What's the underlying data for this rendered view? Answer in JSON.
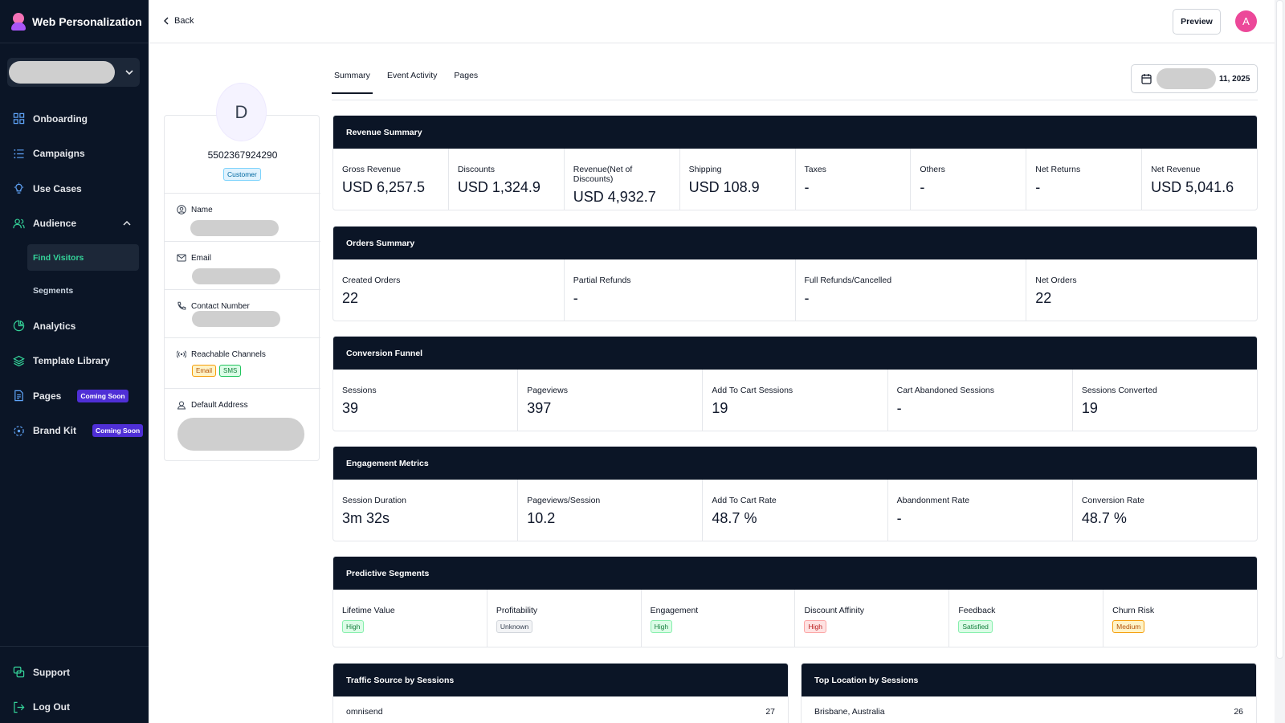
{
  "app": {
    "title": "Web Personalization"
  },
  "sidebar": {
    "nav": [
      {
        "label": "Onboarding",
        "icon": "grid-icon"
      },
      {
        "label": "Campaigns",
        "icon": "list-icon"
      },
      {
        "label": "Use Cases",
        "icon": "lightbulb-icon"
      },
      {
        "label": "Audience",
        "icon": "users-icon"
      }
    ],
    "sub": [
      {
        "label": "Find Visitors"
      },
      {
        "label": "Segments"
      }
    ],
    "nav2": [
      {
        "label": "Analytics",
        "icon": "pie-chart-icon"
      },
      {
        "label": "Template Library",
        "icon": "layers-icon"
      },
      {
        "label": "Pages",
        "icon": "page-icon",
        "badge": "Coming Soon"
      },
      {
        "label": "Brand Kit",
        "icon": "palette-icon",
        "badge": "Coming Soon"
      }
    ],
    "bottom": [
      {
        "label": "Support",
        "icon": "support-icon"
      },
      {
        "label": "Log Out",
        "icon": "logout-icon"
      }
    ]
  },
  "topbar": {
    "back": "Back",
    "preview": "Preview",
    "avatar": "A"
  },
  "profile": {
    "initial": "D",
    "id": "5502367924290",
    "tag": "Customer",
    "fields": {
      "name": "Name",
      "email": "Email",
      "contact": "Contact Number",
      "channels": "Reachable Channels",
      "address": "Default Address"
    },
    "channels": [
      "Email",
      "SMS"
    ]
  },
  "tabs": [
    "Summary",
    "Event Activity",
    "Pages"
  ],
  "date_range": {
    "suffix": "11, 2025"
  },
  "revenue": {
    "title": "Revenue Summary",
    "metrics": [
      {
        "label": "Gross Revenue",
        "value": "USD 6,257.5"
      },
      {
        "label": "Discounts",
        "value": "USD 1,324.9"
      },
      {
        "label": "Revenue(Net of Discounts)",
        "value": "USD 4,932.7"
      },
      {
        "label": "Shipping",
        "value": "USD 108.9"
      },
      {
        "label": "Taxes",
        "value": "-"
      },
      {
        "label": "Others",
        "value": "-"
      },
      {
        "label": "Net Returns",
        "value": "-"
      },
      {
        "label": "Net Revenue",
        "value": "USD 5,041.6"
      }
    ]
  },
  "orders": {
    "title": "Orders Summary",
    "metrics": [
      {
        "label": "Created Orders",
        "value": "22"
      },
      {
        "label": "Partial Refunds",
        "value": "-"
      },
      {
        "label": "Full Refunds/Cancelled",
        "value": "-"
      },
      {
        "label": "Net Orders",
        "value": "22"
      }
    ]
  },
  "funnel": {
    "title": "Conversion Funnel",
    "metrics": [
      {
        "label": "Sessions",
        "value": "39"
      },
      {
        "label": "Pageviews",
        "value": "397"
      },
      {
        "label": "Add To Cart Sessions",
        "value": "19"
      },
      {
        "label": "Cart Abandoned Sessions",
        "value": "-"
      },
      {
        "label": "Sessions Converted",
        "value": "19"
      }
    ]
  },
  "engagement": {
    "title": "Engagement Metrics",
    "metrics": [
      {
        "label": "Session Duration",
        "value": "3m 32s"
      },
      {
        "label": "Pageviews/Session",
        "value": "10.2"
      },
      {
        "label": "Add To Cart Rate",
        "value": "48.7 %"
      },
      {
        "label": "Abandonment Rate",
        "value": "-"
      },
      {
        "label": "Conversion Rate",
        "value": "48.7 %"
      }
    ]
  },
  "predictive": {
    "title": "Predictive Segments",
    "metrics": [
      {
        "label": "Lifetime Value",
        "value": "High",
        "tone": "green"
      },
      {
        "label": "Profitability",
        "value": "Unknown",
        "tone": "gray"
      },
      {
        "label": "Engagement",
        "value": "High",
        "tone": "green"
      },
      {
        "label": "Discount Affinity",
        "value": "High",
        "tone": "red"
      },
      {
        "label": "Feedback",
        "value": "Satisfied",
        "tone": "green"
      },
      {
        "label": "Churn Risk",
        "value": "Medium",
        "tone": "orange"
      }
    ]
  },
  "traffic": {
    "title": "Traffic Source by Sessions",
    "row": {
      "label": "omnisend",
      "value": "27"
    }
  },
  "location": {
    "title": "Top Location by Sessions",
    "row": {
      "label": "Brisbane, Australia",
      "value": "26"
    }
  }
}
